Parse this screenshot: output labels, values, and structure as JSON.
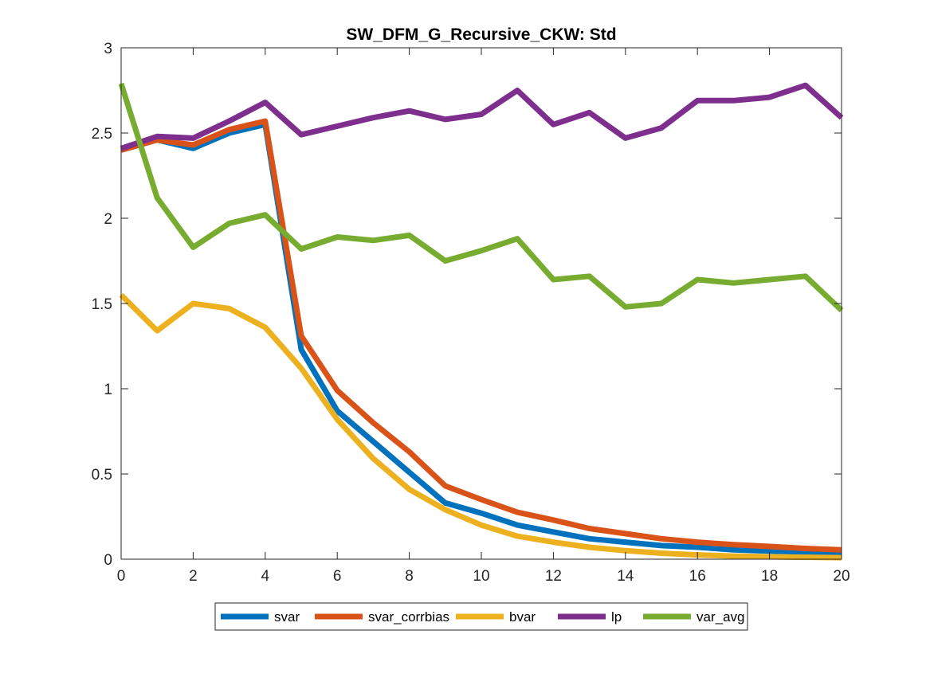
{
  "chart_data": {
    "type": "line",
    "title": "SW_DFM_G_Recursive_CKW: Std",
    "xlabel": "",
    "ylabel": "",
    "xlim": [
      0,
      20
    ],
    "ylim": [
      0,
      3
    ],
    "xticks": [
      0,
      2,
      4,
      6,
      8,
      10,
      12,
      14,
      16,
      18,
      20
    ],
    "yticks": [
      0,
      0.5,
      1,
      1.5,
      2,
      2.5,
      3
    ],
    "xtick_labels": [
      "0",
      "2",
      "4",
      "6",
      "8",
      "10",
      "12",
      "14",
      "16",
      "18",
      "20"
    ],
    "ytick_labels": [
      "0",
      "0.5",
      "1",
      "1.5",
      "2",
      "2.5",
      "3"
    ],
    "x": [
      0,
      1,
      2,
      3,
      4,
      5,
      6,
      7,
      8,
      9,
      10,
      11,
      12,
      13,
      14,
      15,
      16,
      17,
      18,
      19,
      20
    ],
    "grid": false,
    "legend_position": "bottom-center",
    "series": [
      {
        "name": "svar",
        "color": "#0072BD",
        "values": [
          2.4,
          2.46,
          2.41,
          2.5,
          2.55,
          1.23,
          0.87,
          0.69,
          0.51,
          0.33,
          0.27,
          0.2,
          0.16,
          0.12,
          0.1,
          0.08,
          0.07,
          0.055,
          0.048,
          0.042,
          0.038
        ]
      },
      {
        "name": "svar_corrbias",
        "color": "#D95319",
        "values": [
          2.4,
          2.46,
          2.43,
          2.52,
          2.57,
          1.31,
          0.99,
          0.8,
          0.63,
          0.43,
          0.35,
          0.275,
          0.23,
          0.18,
          0.15,
          0.12,
          0.1,
          0.085,
          0.075,
          0.063,
          0.055
        ]
      },
      {
        "name": "bvar",
        "color": "#EDB120",
        "values": [
          1.55,
          1.34,
          1.5,
          1.47,
          1.36,
          1.12,
          0.82,
          0.59,
          0.41,
          0.29,
          0.2,
          0.135,
          0.1,
          0.07,
          0.05,
          0.035,
          0.025,
          0.018,
          0.014,
          0.011,
          0.009
        ]
      },
      {
        "name": "lp",
        "color": "#7E2F8E",
        "values": [
          2.41,
          2.48,
          2.47,
          2.57,
          2.68,
          2.49,
          2.54,
          2.59,
          2.63,
          2.58,
          2.61,
          2.75,
          2.55,
          2.62,
          2.47,
          2.53,
          2.69,
          2.69,
          2.71,
          2.78,
          2.59
        ]
      },
      {
        "name": "var_avg",
        "color": "#77AC30",
        "values": [
          2.79,
          2.12,
          1.83,
          1.97,
          2.02,
          1.82,
          1.89,
          1.87,
          1.9,
          1.75,
          1.81,
          1.88,
          1.64,
          1.66,
          1.48,
          1.5,
          1.64,
          1.62,
          1.64,
          1.66,
          1.46
        ]
      }
    ]
  }
}
